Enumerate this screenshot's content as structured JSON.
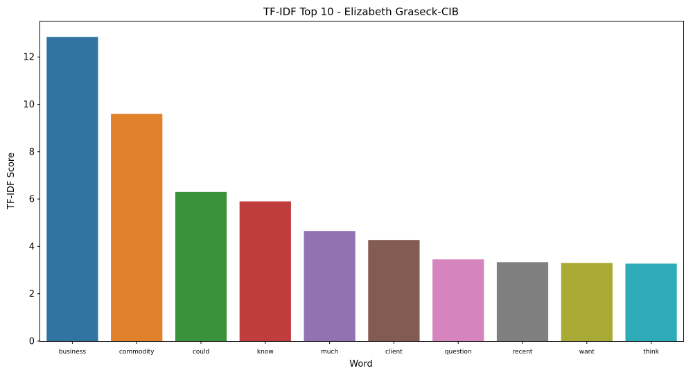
{
  "chart_data": {
    "type": "bar",
    "title": "TF-IDF Top 10 - Elizabeth Graseck-CIB",
    "xlabel": "Word",
    "ylabel": "TF-IDF Score",
    "categories": [
      "business",
      "commodity",
      "could",
      "know",
      "much",
      "client",
      "question",
      "recent",
      "want",
      "think"
    ],
    "values": [
      12.85,
      9.6,
      6.3,
      5.9,
      4.65,
      4.27,
      3.45,
      3.33,
      3.3,
      3.27
    ],
    "colors": [
      "#3274a1",
      "#e1812c",
      "#3a923a",
      "#c03d3e",
      "#9372b2",
      "#845b53",
      "#d684bd",
      "#7f7f7f",
      "#a9aa35",
      "#2eabb8"
    ],
    "ylim": [
      0,
      13.5
    ],
    "yticks": [
      0,
      2,
      4,
      6,
      8,
      10,
      12
    ],
    "grid": false,
    "legend": "none"
  }
}
